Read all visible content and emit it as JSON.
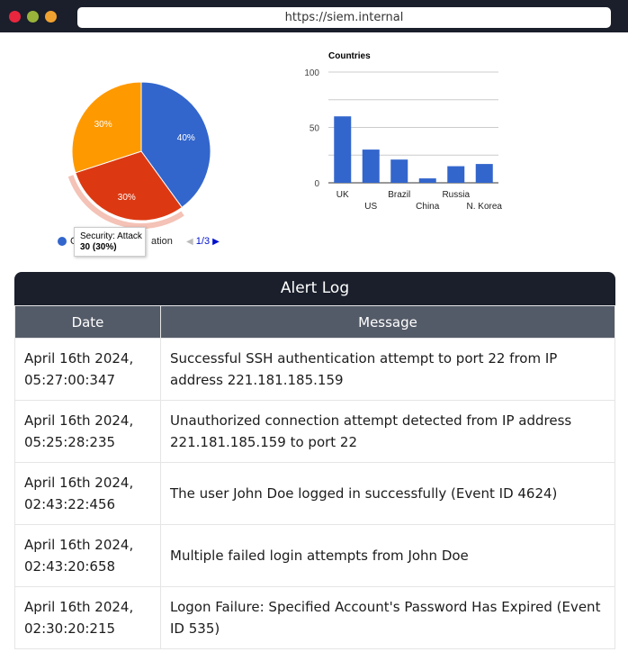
{
  "browser": {
    "url": "https://siem.internal"
  },
  "pie": {
    "colors": [
      "#3366cc",
      "#dc3912",
      "#ff9900"
    ],
    "legend_label": "Cyber Security: Ransomware Investigation",
    "legend_visible": "C",
    "legend_tail": "ation",
    "pager": "1/3",
    "tooltip": {
      "title": "Security: Attack",
      "value": "30 (30%)"
    }
  },
  "bar_color": "#3366cc",
  "chart_data": [
    {
      "type": "pie",
      "slices": [
        {
          "label": "40%",
          "value": 40
        },
        {
          "label": "30%",
          "value": 30
        },
        {
          "label": "30%",
          "value": 30
        }
      ]
    },
    {
      "type": "bar",
      "title": "Countries",
      "categories": [
        "UK",
        "US",
        "Brazil",
        "China",
        "Russia",
        "N. Korea"
      ],
      "values": [
        60,
        30,
        21,
        4,
        15,
        17
      ],
      "ylim": [
        0,
        100
      ],
      "yticks": [
        "0",
        "50",
        "100"
      ],
      "grid": true
    }
  ],
  "alert_log": {
    "title": "Alert Log",
    "columns": [
      "Date",
      "Message"
    ],
    "rows": [
      {
        "date_line1": "April 16th 2024,",
        "date_line2": "05:27:00:347",
        "message": "Successful SSH authentication attempt to port 22 from IP address 221.181.185.159"
      },
      {
        "date_line1": "April 16th 2024,",
        "date_line2": "05:25:28:235",
        "message": "Unauthorized connection attempt detected from IP address 221.181.185.159 to port 22"
      },
      {
        "date_line1": "April 16th 2024,",
        "date_line2": "02:43:22:456",
        "message": "The user John Doe logged in successfully (Event ID 4624)"
      },
      {
        "date_line1": "April 16th 2024,",
        "date_line2": "02:43:20:658",
        "message": "Multiple failed login attempts from John Doe"
      },
      {
        "date_line1": "April 16th 2024,",
        "date_line2": "02:30:20:215",
        "message": "Logon Failure: Specified Account's Password Has Expired (Event ID 535)"
      }
    ]
  }
}
